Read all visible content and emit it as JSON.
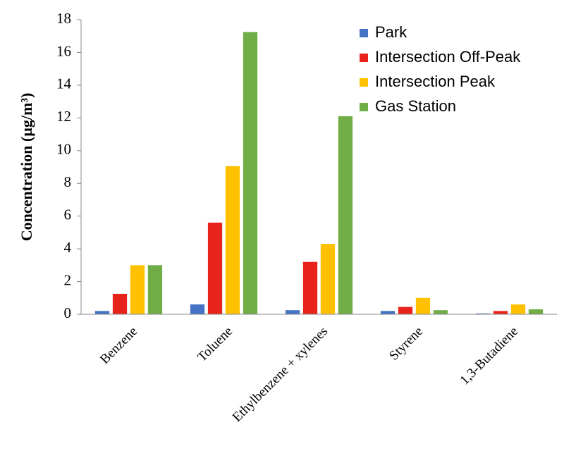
{
  "chart_data": {
    "type": "bar",
    "y_label": "Concentration (µg/m³)",
    "categories": [
      "Benzene",
      "Toluene",
      "Ethylbenzene + xylenes",
      "Styrene",
      "1,3-Butadiene"
    ],
    "series": [
      {
        "name": "Park",
        "color": "#4472c4",
        "values": [
          0.2,
          0.6,
          0.25,
          0.2,
          0.05
        ]
      },
      {
        "name": "Intersection Off-Peak",
        "color": "#e8231b",
        "values": [
          1.25,
          5.6,
          3.2,
          0.45,
          0.2
        ]
      },
      {
        "name": "Intersection Peak",
        "color": "#ffc000",
        "values": [
          3.0,
          9.05,
          4.3,
          1.0,
          0.6
        ]
      },
      {
        "name": "Gas Station",
        "color": "#70ad47",
        "values": [
          3.0,
          17.25,
          12.1,
          0.25,
          0.3
        ]
      }
    ],
    "ylim": [
      0,
      18
    ],
    "yticks": [
      0,
      2,
      4,
      6,
      8,
      10,
      12,
      14,
      16,
      18
    ],
    "grid": false,
    "legend": "upper-right"
  }
}
